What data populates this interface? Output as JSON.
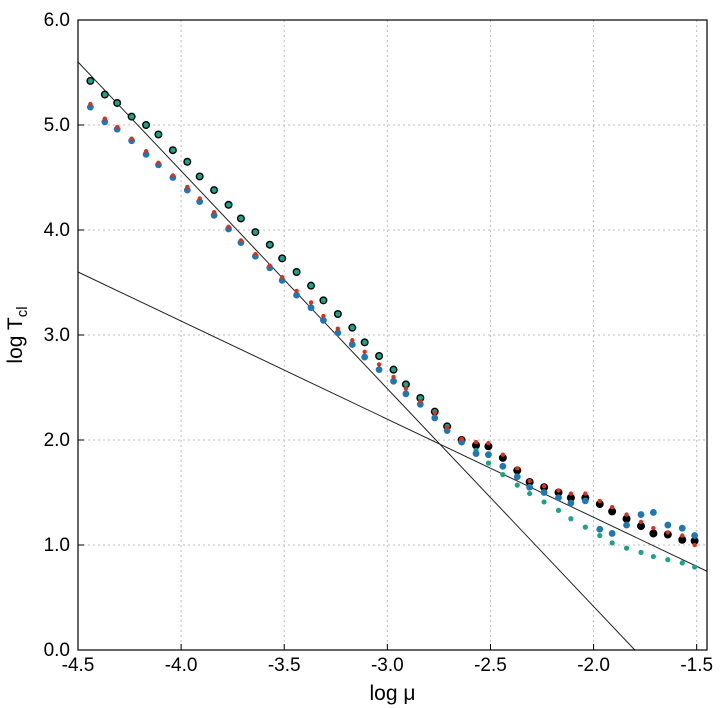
{
  "chart_data": {
    "type": "scatter",
    "title": "",
    "xlabel": "log μ",
    "ylabel": "log T",
    "ylabel_sub": "cl",
    "xlim": [
      -4.5,
      -1.45
    ],
    "ylim": [
      0.0,
      6.0
    ],
    "x_ticks": [
      -4.5,
      -4.0,
      -3.5,
      -3.0,
      -2.5,
      -2.0,
      -1.5
    ],
    "x_tick_labels": [
      "-4.5",
      "-4.0",
      "-3.5",
      "-3.0",
      "-2.5",
      "-2.0",
      "-1.5"
    ],
    "y_ticks": [
      0,
      1,
      2,
      3,
      4,
      5,
      6
    ],
    "y_tick_labels": [
      "0.0",
      "1.0",
      "2.0",
      "3.0",
      "4.0",
      "5.0",
      "6.0"
    ],
    "grid": true,
    "legend": "none",
    "fit_lines": [
      {
        "x": [
          -4.5,
          -1.8
        ],
        "y": [
          5.6,
          0.0
        ]
      },
      {
        "x": [
          -4.5,
          -1.45
        ],
        "y": [
          3.6,
          0.75
        ]
      }
    ],
    "series": [
      {
        "color": "#000000",
        "marker_size": 4,
        "x": [
          -4.44,
          -4.37,
          -4.31,
          -4.24,
          -4.17,
          -4.11,
          -4.04,
          -3.97,
          -3.91,
          -3.84,
          -3.77,
          -3.71,
          -3.64,
          -3.57,
          -3.51,
          -3.44,
          -3.37,
          -3.31,
          -3.24,
          -3.17,
          -3.11,
          -3.04,
          -2.97,
          -2.91,
          -2.84,
          -2.77,
          -2.71,
          -2.64,
          -2.57,
          -2.51,
          -2.44,
          -2.37,
          -2.31,
          -2.24,
          -2.17,
          -2.11,
          -2.04,
          -1.97,
          -1.91,
          -1.84,
          -1.77,
          -1.71,
          -1.64,
          -1.57,
          -1.51
        ],
        "y": [
          5.42,
          5.29,
          5.21,
          5.08,
          5.0,
          4.91,
          4.76,
          4.65,
          4.51,
          4.38,
          4.24,
          4.11,
          3.98,
          3.86,
          3.73,
          3.6,
          3.47,
          3.33,
          3.2,
          3.07,
          2.93,
          2.8,
          2.67,
          2.53,
          2.4,
          2.27,
          2.13,
          2.0,
          1.95,
          1.94,
          1.83,
          1.71,
          1.6,
          1.55,
          1.5,
          1.45,
          1.45,
          1.39,
          1.32,
          1.25,
          1.18,
          1.11,
          1.1,
          1.05,
          1.04
        ]
      },
      {
        "color": "#17a487",
        "marker_size": 2.6,
        "x": [
          -4.44,
          -4.37,
          -4.31,
          -4.24,
          -4.17,
          -4.11,
          -4.04,
          -3.97,
          -3.91,
          -3.84,
          -3.77,
          -3.71,
          -3.64,
          -3.57,
          -3.51,
          -3.44,
          -3.37,
          -3.31,
          -3.24,
          -3.17,
          -3.11,
          -3.04,
          -2.97,
          -2.91,
          -2.84,
          -2.77,
          -2.71,
          -2.64,
          -2.57,
          -2.51,
          -2.44,
          -2.37,
          -2.31,
          -2.24,
          -2.17,
          -2.11,
          -2.04,
          -1.97,
          -1.91,
          -1.84,
          -1.77,
          -1.71,
          -1.64,
          -1.57,
          -1.51
        ],
        "y": [
          5.42,
          5.29,
          5.21,
          5.08,
          5.0,
          4.91,
          4.76,
          4.65,
          4.51,
          4.38,
          4.24,
          4.11,
          3.98,
          3.86,
          3.73,
          3.6,
          3.47,
          3.33,
          3.2,
          3.07,
          2.93,
          2.8,
          2.67,
          2.53,
          2.4,
          2.27,
          2.13,
          2.0,
          1.9,
          1.78,
          1.67,
          1.57,
          1.49,
          1.41,
          1.33,
          1.25,
          1.17,
          1.09,
          1.02,
          0.97,
          0.93,
          0.89,
          0.86,
          0.83,
          0.79
        ]
      },
      {
        "color": "#1f77b4",
        "marker_size": 3.4,
        "x": [
          -4.44,
          -4.37,
          -4.31,
          -4.24,
          -4.17,
          -4.11,
          -4.04,
          -3.97,
          -3.91,
          -3.84,
          -3.77,
          -3.71,
          -3.64,
          -3.57,
          -3.51,
          -3.44,
          -3.37,
          -3.31,
          -3.24,
          -3.17,
          -3.11,
          -3.04,
          -2.97,
          -2.91,
          -2.84,
          -2.77,
          -2.71,
          -2.64,
          -2.57,
          -2.51,
          -2.44,
          -2.37,
          -2.31,
          -2.24,
          -2.17,
          -2.11,
          -2.04,
          -1.97,
          -1.91,
          -1.84,
          -1.77,
          -1.71,
          -1.64,
          -1.57,
          -1.51
        ],
        "y": [
          5.17,
          5.03,
          4.96,
          4.85,
          4.72,
          4.62,
          4.5,
          4.38,
          4.27,
          4.14,
          4.01,
          3.88,
          3.75,
          3.64,
          3.52,
          3.38,
          3.26,
          3.14,
          3.02,
          2.91,
          2.79,
          2.67,
          2.56,
          2.44,
          2.34,
          2.21,
          2.09,
          1.98,
          1.87,
          1.86,
          1.75,
          1.65,
          1.55,
          1.5,
          1.45,
          1.4,
          1.42,
          1.15,
          1.11,
          1.19,
          1.29,
          1.31,
          1.19,
          1.16,
          1.09
        ]
      },
      {
        "color": "#d6331e",
        "marker_size": 2.2,
        "x": [
          -4.44,
          -4.37,
          -4.31,
          -4.24,
          -4.17,
          -4.11,
          -4.04,
          -3.97,
          -3.91,
          -3.84,
          -3.77,
          -3.71,
          -3.64,
          -3.57,
          -3.51,
          -3.44,
          -3.37,
          -3.31,
          -3.24,
          -3.17,
          -3.11,
          -3.04,
          -2.97,
          -2.91,
          -2.84,
          -2.77,
          -2.71,
          -2.64,
          -2.57,
          -2.51,
          -2.44,
          -2.37,
          -2.31,
          -2.24,
          -2.17,
          -2.11,
          -2.04,
          -1.97,
          -1.91,
          -1.84,
          -1.77,
          -1.71,
          -1.64,
          -1.57,
          -1.51
        ],
        "y": [
          5.2,
          5.06,
          4.98,
          4.87,
          4.75,
          4.64,
          4.52,
          4.41,
          4.3,
          4.17,
          4.03,
          3.9,
          3.77,
          3.66,
          3.55,
          3.42,
          3.31,
          3.18,
          3.06,
          2.95,
          2.84,
          2.72,
          2.6,
          2.49,
          2.37,
          2.26,
          2.12,
          2.01,
          1.98,
          1.97,
          1.86,
          1.73,
          1.61,
          1.56,
          1.52,
          1.49,
          1.49,
          1.42,
          1.36,
          1.29,
          1.22,
          1.16,
          1.12,
          1.09,
          1.0
        ]
      }
    ]
  }
}
